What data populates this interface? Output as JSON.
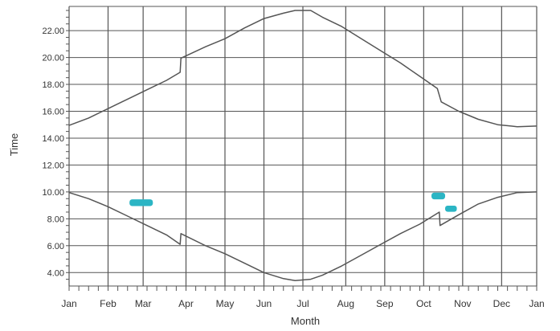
{
  "chart_data": {
    "type": "line",
    "title": "",
    "xlabel": "Month",
    "ylabel": "Time",
    "xlim": [
      0,
      12
    ],
    "ylim": [
      3.0,
      23.8
    ],
    "grid": true,
    "x_ticks": [
      {
        "label": "Jan",
        "value": 0
      },
      {
        "label": "Feb",
        "value": 1
      },
      {
        "label": "Mar",
        "value": 1.9
      },
      {
        "label": "Apr",
        "value": 3.0
      },
      {
        "label": "May",
        "value": 4.0
      },
      {
        "label": "Jun",
        "value": 5.0
      },
      {
        "label": "Jul",
        "value": 6.0
      },
      {
        "label": "Aug",
        "value": 7.1
      },
      {
        "label": "Sep",
        "value": 8.1
      },
      {
        "label": "Oct",
        "value": 9.1
      },
      {
        "label": "Nov",
        "value": 10.1
      },
      {
        "label": "Dec",
        "value": 11.1
      },
      {
        "label": "Jan",
        "value": 12.0
      }
    ],
    "y_ticks": [
      "4.00",
      "6.00",
      "8.00",
      "10.00",
      "12.00",
      "14.00",
      "16.00",
      "18.00",
      "20.00",
      "22.00"
    ],
    "y_tick_values": [
      4,
      6,
      8,
      10,
      12,
      14,
      16,
      18,
      20,
      22
    ],
    "series": [
      {
        "values": [
          [
            0.0,
            14.95
          ],
          [
            0.5,
            15.5
          ],
          [
            1.0,
            16.2
          ],
          [
            1.5,
            16.9
          ],
          [
            2.0,
            17.6
          ],
          [
            2.5,
            18.3
          ],
          [
            2.85,
            18.9
          ],
          [
            2.87,
            19.95
          ],
          [
            3.5,
            20.8
          ],
          [
            4.0,
            21.4
          ],
          [
            4.5,
            22.2
          ],
          [
            5.0,
            22.9
          ],
          [
            5.5,
            23.3
          ],
          [
            5.8,
            23.5
          ],
          [
            6.2,
            23.5
          ],
          [
            6.5,
            23.0
          ],
          [
            7.0,
            22.3
          ],
          [
            7.5,
            21.4
          ],
          [
            8.0,
            20.5
          ],
          [
            8.5,
            19.6
          ],
          [
            9.0,
            18.6
          ],
          [
            9.45,
            17.7
          ],
          [
            9.55,
            16.7
          ],
          [
            10.0,
            16.0
          ],
          [
            10.5,
            15.4
          ],
          [
            11.0,
            15.0
          ],
          [
            11.5,
            14.85
          ],
          [
            12.0,
            14.9
          ]
        ]
      },
      {
        "values": [
          [
            0.0,
            9.95
          ],
          [
            0.5,
            9.5
          ],
          [
            1.0,
            8.9
          ],
          [
            1.5,
            8.2
          ],
          [
            2.0,
            7.5
          ],
          [
            2.5,
            6.8
          ],
          [
            2.85,
            6.1
          ],
          [
            2.87,
            6.9
          ],
          [
            3.5,
            6.0
          ],
          [
            4.0,
            5.4
          ],
          [
            4.5,
            4.7
          ],
          [
            5.0,
            4.0
          ],
          [
            5.5,
            3.55
          ],
          [
            5.8,
            3.4
          ],
          [
            6.2,
            3.5
          ],
          [
            6.5,
            3.8
          ],
          [
            7.0,
            4.5
          ],
          [
            7.5,
            5.3
          ],
          [
            8.0,
            6.1
          ],
          [
            8.5,
            6.9
          ],
          [
            9.0,
            7.6
          ],
          [
            9.5,
            8.5
          ],
          [
            9.52,
            7.5
          ],
          [
            10.0,
            8.3
          ],
          [
            10.5,
            9.1
          ],
          [
            11.0,
            9.6
          ],
          [
            11.5,
            9.95
          ],
          [
            12.0,
            10.0
          ]
        ]
      }
    ],
    "annotations": [
      {
        "kind": "teal-mark",
        "x": 1.55,
        "y": 9.2,
        "w": 0.6,
        "h": 0.5
      },
      {
        "kind": "teal-mark",
        "x": 9.3,
        "y": 9.7,
        "w": 0.35,
        "h": 0.5
      },
      {
        "kind": "teal-mark",
        "x": 9.65,
        "y": 8.75,
        "w": 0.3,
        "h": 0.45
      }
    ],
    "colors": {
      "line": "#555555",
      "grid": "#555555",
      "annotation": "#2bb5c4",
      "text": "#333333"
    }
  }
}
